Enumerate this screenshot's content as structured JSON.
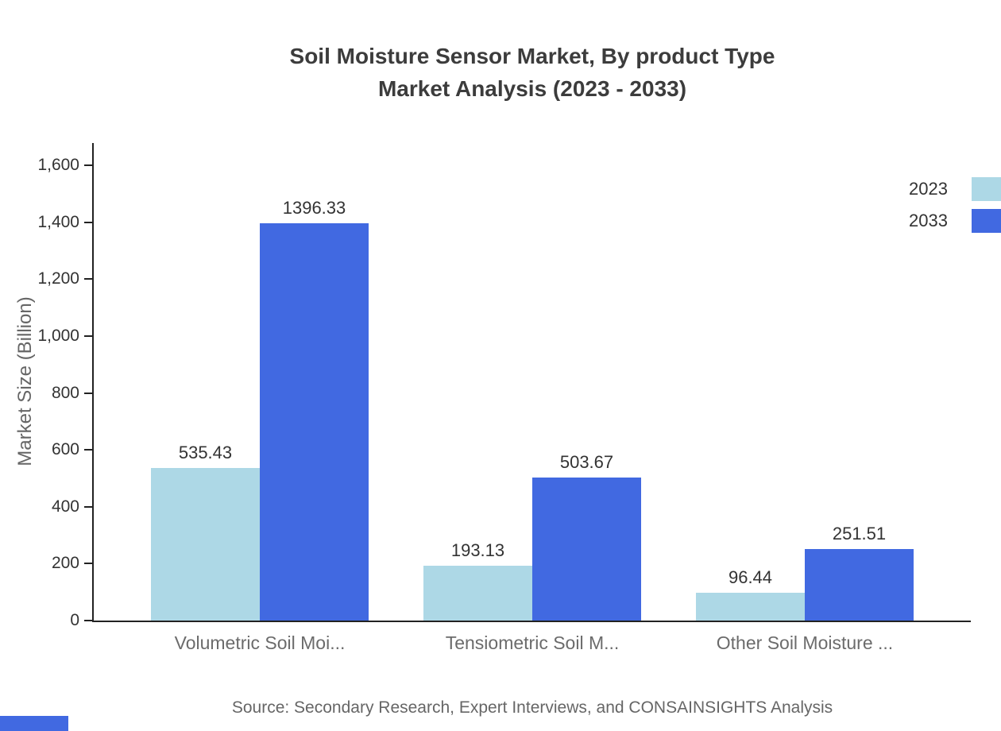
{
  "banner_color": "#4169e1",
  "chart_data": {
    "type": "bar",
    "title": "Soil Moisture Sensor Market, By product Type Market Analysis (2023 - 2033)",
    "title_line1": "Soil Moisture Sensor Market, By product Type",
    "title_line2": "Market Analysis (2023 - 2033)",
    "categories": [
      "Volumetric Soil Moi...",
      "Tensiometric Soil M...",
      "Other Soil Moisture ..."
    ],
    "series": [
      {
        "name": "2023",
        "color": "#add8e6",
        "values": [
          535.43,
          193.13,
          96.44
        ]
      },
      {
        "name": "2033",
        "color": "#4169e1",
        "values": [
          1396.33,
          503.67,
          251.51
        ]
      }
    ],
    "xlabel": "",
    "ylabel": "Market Size (Billion)",
    "ylim": [
      0,
      1600
    ],
    "yticks": [
      0,
      200,
      400,
      600,
      800,
      1000,
      1200,
      1400,
      1600
    ],
    "grid": false,
    "legend_position": "top-right",
    "value_label_decimals": 2,
    "source": "Source: Secondary Research, Expert Interviews, and CONSAINSIGHTS Analysis"
  }
}
